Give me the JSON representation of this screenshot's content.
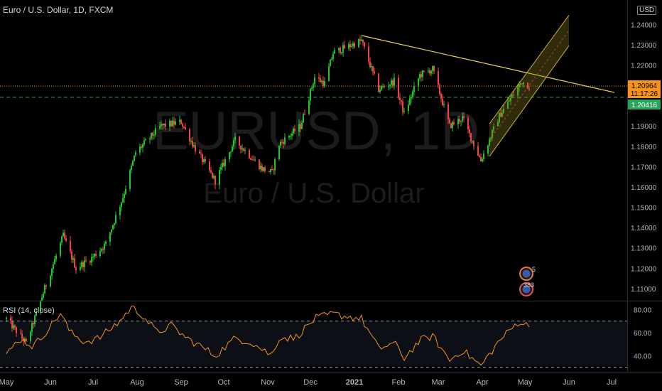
{
  "header": {
    "title": "Euro / U.S. Dollar, 1D, FXCM"
  },
  "watermark": {
    "symbol": "EURUSD, 1D",
    "name": "Euro / U.S. Dollar"
  },
  "currency_badge": "USD",
  "price_badges": {
    "last_price": "1.20964",
    "countdown": "11:17:26",
    "level_price": "1.20416",
    "last_color": "#f7931a",
    "level_color": "#26a65b"
  },
  "rsi": {
    "title": "RSI (14, close)"
  },
  "event_badges": [
    "5",
    "383"
  ],
  "colors": {
    "up": "#26c22b",
    "down": "#ef4444",
    "trend": "#e9d84a",
    "channel": "#8a7a1e",
    "rsi_line": "#f7931a"
  },
  "chart_data": [
    {
      "type": "candlestick",
      "symbol": "EURUSD",
      "timeframe": "1D",
      "source": "FXCM",
      "y_ticks": [
        "1.24000",
        "1.23000",
        "1.22000",
        "1.21000",
        "1.20000",
        "1.19000",
        "1.18000",
        "1.17000",
        "1.16000",
        "1.15000",
        "1.14000",
        "1.13000",
        "1.12000",
        "1.11000"
      ],
      "y_tick_values": [
        1.24,
        1.23,
        1.22,
        1.21,
        1.2,
        1.19,
        1.18,
        1.17,
        1.16,
        1.15,
        1.14,
        1.13,
        1.12,
        1.11
      ],
      "ylim": [
        1.104,
        1.252
      ],
      "x_ticks": [
        "May",
        "Jun",
        "Jul",
        "Aug",
        "Sep",
        "Oct",
        "Nov",
        "Dec",
        "2021",
        "Feb",
        "Mar",
        "Apr",
        "May",
        "Jun",
        "Jul"
      ],
      "x_tick_days": [
        0,
        31,
        61,
        92,
        123,
        153,
        184,
        214,
        245,
        276,
        304,
        335,
        365,
        396,
        426
      ],
      "x_start": "2020-05-01",
      "anchors": [
        {
          "date": "2020-05-01",
          "close": 1.095
        },
        {
          "date": "2020-05-15",
          "close": 1.083
        },
        {
          "date": "2020-05-28",
          "close": 1.11
        },
        {
          "date": "2020-06-10",
          "close": 1.136
        },
        {
          "date": "2020-06-19",
          "close": 1.12
        },
        {
          "date": "2020-06-30",
          "close": 1.125
        },
        {
          "date": "2020-07-10",
          "close": 1.132
        },
        {
          "date": "2020-07-22",
          "close": 1.155
        },
        {
          "date": "2020-07-31",
          "close": 1.177
        },
        {
          "date": "2020-08-18",
          "close": 1.19
        },
        {
          "date": "2020-09-01",
          "close": 1.192
        },
        {
          "date": "2020-09-10",
          "close": 1.18
        },
        {
          "date": "2020-09-25",
          "close": 1.163
        },
        {
          "date": "2020-10-09",
          "close": 1.183
        },
        {
          "date": "2020-10-28",
          "close": 1.169
        },
        {
          "date": "2020-11-04",
          "close": 1.167
        },
        {
          "date": "2020-11-09",
          "close": 1.181
        },
        {
          "date": "2020-11-24",
          "close": 1.19
        },
        {
          "date": "2020-12-04",
          "close": 1.214
        },
        {
          "date": "2020-12-11",
          "close": 1.211
        },
        {
          "date": "2020-12-17",
          "close": 1.226
        },
        {
          "date": "2021-01-06",
          "close": 1.232
        },
        {
          "date": "2021-01-18",
          "close": 1.208
        },
        {
          "date": "2021-01-29",
          "close": 1.212
        },
        {
          "date": "2021-02-05",
          "close": 1.196
        },
        {
          "date": "2021-02-16",
          "close": 1.215
        },
        {
          "date": "2021-02-25",
          "close": 1.218
        },
        {
          "date": "2021-03-09",
          "close": 1.19
        },
        {
          "date": "2021-03-18",
          "close": 1.194
        },
        {
          "date": "2021-03-31",
          "close": 1.173
        },
        {
          "date": "2021-04-13",
          "close": 1.195
        },
        {
          "date": "2021-04-29",
          "close": 1.212
        },
        {
          "date": "2021-05-04",
          "close": 1.2096
        }
      ],
      "horizontal_levels": [
        {
          "price": 1.20964,
          "style": "dotted",
          "color": "#f7931a"
        },
        {
          "price": 1.20416,
          "style": "dashed",
          "color": "#26a65b"
        }
      ],
      "trendline": {
        "start": {
          "date": "2021-01-06",
          "price": 1.2345
        },
        "end": {
          "date": "2021-07-03",
          "price": 1.2065
        }
      },
      "channel": {
        "upper": {
          "start": {
            "date": "2021-04-06",
            "price": 1.191
          },
          "end": {
            "date": "2021-06-01",
            "price": 1.2445
          }
        },
        "lower": {
          "start": {
            "date": "2021-04-06",
            "price": 1.175
          },
          "end": {
            "date": "2021-06-01",
            "price": 1.2295
          }
        }
      }
    },
    {
      "type": "line",
      "name": "RSI (14, close)",
      "y_ticks": [
        "80.00",
        "60.00",
        "40.00"
      ],
      "y_tick_values": [
        80,
        60,
        40
      ],
      "ylim": [
        26,
        87
      ],
      "bands": [
        70,
        30
      ],
      "anchors": [
        {
          "date": "2020-05-01",
          "value": 40
        },
        {
          "date": "2020-05-10",
          "value": 55
        },
        {
          "date": "2020-05-20",
          "value": 48
        },
        {
          "date": "2020-06-02",
          "value": 67
        },
        {
          "date": "2020-06-08",
          "value": 77
        },
        {
          "date": "2020-06-15",
          "value": 60
        },
        {
          "date": "2020-06-25",
          "value": 52
        },
        {
          "date": "2020-07-05",
          "value": 55
        },
        {
          "date": "2020-07-20",
          "value": 70
        },
        {
          "date": "2020-07-28",
          "value": 82
        },
        {
          "date": "2020-08-05",
          "value": 75
        },
        {
          "date": "2020-08-15",
          "value": 60
        },
        {
          "date": "2020-08-25",
          "value": 66
        },
        {
          "date": "2020-09-05",
          "value": 55
        },
        {
          "date": "2020-09-15",
          "value": 48
        },
        {
          "date": "2020-09-25",
          "value": 40
        },
        {
          "date": "2020-10-09",
          "value": 55
        },
        {
          "date": "2020-10-20",
          "value": 52
        },
        {
          "date": "2020-11-04",
          "value": 40
        },
        {
          "date": "2020-11-09",
          "value": 56
        },
        {
          "date": "2020-11-20",
          "value": 55
        },
        {
          "date": "2020-12-04",
          "value": 72
        },
        {
          "date": "2020-12-17",
          "value": 76
        },
        {
          "date": "2021-01-06",
          "value": 72
        },
        {
          "date": "2021-01-18",
          "value": 46
        },
        {
          "date": "2021-01-29",
          "value": 51
        },
        {
          "date": "2021-02-05",
          "value": 38
        },
        {
          "date": "2021-02-16",
          "value": 53
        },
        {
          "date": "2021-02-25",
          "value": 57
        },
        {
          "date": "2021-03-09",
          "value": 36
        },
        {
          "date": "2021-03-18",
          "value": 45
        },
        {
          "date": "2021-03-31",
          "value": 31
        },
        {
          "date": "2021-04-13",
          "value": 53
        },
        {
          "date": "2021-04-27",
          "value": 70
        },
        {
          "date": "2021-05-04",
          "value": 65
        }
      ]
    }
  ]
}
